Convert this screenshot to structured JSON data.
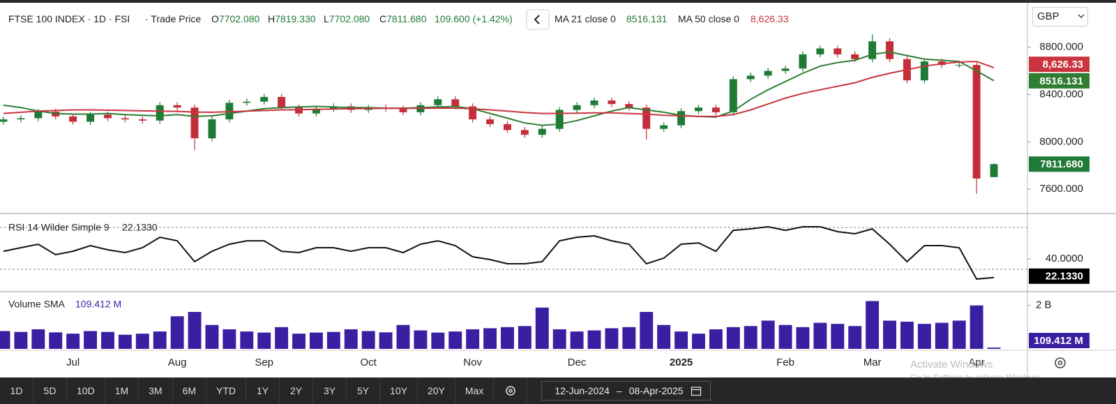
{
  "header": {
    "symbol": "FTSE 100 INDEX · 1D · FSI",
    "price_type": "· Trade Price",
    "ohlc_keys": [
      "O",
      "H",
      "L",
      "C"
    ],
    "change": "109.600 (+1.42%)"
  },
  "currency": "GBP",
  "chart_data": [
    {
      "type": "candlestick",
      "categories": [
        null,
        null,
        null,
        null,
        "Jul",
        null,
        null,
        null,
        null,
        null,
        "Aug",
        null,
        null,
        null,
        null,
        "Sep",
        null,
        null,
        null,
        null,
        null,
        "Oct",
        null,
        null,
        null,
        null,
        null,
        "Nov",
        null,
        null,
        null,
        null,
        null,
        "Dec",
        null,
        null,
        null,
        null,
        null,
        "2025",
        null,
        null,
        null,
        null,
        null,
        "Feb",
        null,
        null,
        null,
        null,
        "Mar",
        null,
        null,
        null,
        null,
        null,
        "Apr",
        null
      ],
      "ohlc": {
        "open": {
          "values": [
            8170,
            8190,
            8200,
            8255,
            8215,
            8170,
            8230,
            8200,
            8190,
            8180,
            8310,
            8290,
            8030,
            8190,
            8330,
            8340,
            8380,
            8290,
            8240,
            8280,
            8300,
            8270,
            8290,
            8280,
            8250,
            8310,
            8360,
            8300,
            8190,
            8150,
            8100,
            8060,
            8110,
            8270,
            8310,
            8350,
            8320,
            8290,
            8110,
            8140,
            8260,
            8290,
            8250,
            8530,
            8560,
            8600,
            8620,
            8740,
            8790,
            8740,
            8700,
            8850,
            8700,
            8520,
            8680,
            8650,
            8650,
            7702.08
          ],
          "value_labels": [
            null,
            null,
            null,
            null,
            null,
            null,
            null,
            null,
            null,
            null,
            null,
            null,
            null,
            null,
            null,
            null,
            null,
            null,
            null,
            null,
            null,
            null,
            null,
            null,
            null,
            null,
            null,
            null,
            null,
            null,
            null,
            null,
            null,
            null,
            null,
            null,
            null,
            null,
            null,
            null,
            null,
            null,
            null,
            null,
            null,
            null,
            null,
            null,
            null,
            null,
            null,
            null,
            null,
            null,
            null,
            null,
            null,
            "7702.080"
          ]
        },
        "high": {
          "values": [
            8215,
            8225,
            8280,
            8280,
            8240,
            8255,
            8255,
            8225,
            8215,
            8335,
            8335,
            8315,
            8215,
            8355,
            8365,
            8405,
            8405,
            8315,
            8305,
            8325,
            8325,
            8315,
            8315,
            8305,
            8335,
            8385,
            8385,
            8325,
            8215,
            8175,
            8125,
            8135,
            8295,
            8335,
            8375,
            8375,
            8345,
            8315,
            8165,
            8285,
            8315,
            8315,
            8555,
            8585,
            8625,
            8645,
            8765,
            8815,
            8815,
            8765,
            8910,
            8875,
            8725,
            8705,
            8705,
            8675,
            8670,
            7819.33
          ],
          "value_labels": [
            null,
            null,
            null,
            null,
            null,
            null,
            null,
            null,
            null,
            null,
            null,
            null,
            null,
            null,
            null,
            null,
            null,
            null,
            null,
            null,
            null,
            null,
            null,
            null,
            null,
            null,
            null,
            null,
            null,
            null,
            null,
            null,
            null,
            null,
            null,
            null,
            null,
            null,
            null,
            null,
            null,
            null,
            null,
            null,
            null,
            null,
            null,
            null,
            null,
            null,
            null,
            null,
            null,
            null,
            null,
            null,
            null,
            "7819.330"
          ]
        },
        "low": {
          "values": [
            8145,
            8165,
            8175,
            8190,
            8145,
            8145,
            8175,
            8165,
            8155,
            8155,
            8265,
            7930,
            8005,
            8165,
            8305,
            8315,
            8265,
            8215,
            8215,
            8255,
            8245,
            8245,
            8255,
            8225,
            8225,
            8285,
            8275,
            8165,
            8125,
            8075,
            8035,
            8035,
            8085,
            8245,
            8285,
            8295,
            8265,
            8020,
            8085,
            8115,
            8235,
            8225,
            8225,
            8505,
            8535,
            8575,
            8595,
            8715,
            8715,
            8675,
            8675,
            8675,
            8495,
            8495,
            8625,
            8625,
            7560,
            7702.08
          ],
          "value_labels": [
            null,
            null,
            null,
            null,
            null,
            null,
            null,
            null,
            null,
            null,
            null,
            null,
            null,
            null,
            null,
            null,
            null,
            null,
            null,
            null,
            null,
            null,
            null,
            null,
            null,
            null,
            null,
            null,
            null,
            null,
            null,
            null,
            null,
            null,
            null,
            null,
            null,
            null,
            null,
            null,
            null,
            null,
            null,
            null,
            null,
            null,
            null,
            null,
            null,
            null,
            null,
            null,
            null,
            null,
            null,
            null,
            null,
            "7702.080"
          ]
        },
        "close": {
          "values": [
            8190,
            8200,
            8255,
            8215,
            8170,
            8230,
            8200,
            8190,
            8180,
            8310,
            8290,
            8030,
            8190,
            8330,
            8340,
            8380,
            8290,
            8240,
            8280,
            8300,
            8270,
            8290,
            8280,
            8250,
            8310,
            8360,
            8300,
            8190,
            8150,
            8100,
            8060,
            8110,
            8270,
            8310,
            8350,
            8320,
            8290,
            8110,
            8140,
            8260,
            8290,
            8250,
            8530,
            8560,
            8600,
            8620,
            8740,
            8790,
            8740,
            8700,
            8850,
            8700,
            8520,
            8680,
            8650,
            8650,
            7690,
            7811.68
          ],
          "value_labels": [
            null,
            null,
            null,
            null,
            null,
            null,
            null,
            null,
            null,
            null,
            null,
            null,
            null,
            null,
            null,
            null,
            null,
            null,
            null,
            null,
            null,
            null,
            null,
            null,
            null,
            null,
            null,
            null,
            null,
            null,
            null,
            null,
            null,
            null,
            null,
            null,
            null,
            null,
            null,
            null,
            null,
            null,
            null,
            null,
            null,
            null,
            null,
            null,
            null,
            null,
            null,
            null,
            null,
            null,
            null,
            null,
            null,
            "7811.680"
          ]
        }
      },
      "up_color": "#1f7a35",
      "down_color": "#c42e3a",
      "lines": [
        {
          "name": "MA 21 close 0",
          "color": "#2e7d32",
          "values": [
            8310,
            8290,
            8260,
            8240,
            8235,
            8235,
            8240,
            8230,
            8225,
            8220,
            8230,
            8215,
            8220,
            8240,
            8260,
            8280,
            8290,
            8295,
            8300,
            8295,
            8290,
            8290,
            8285,
            8285,
            8290,
            8295,
            8300,
            8280,
            8240,
            8200,
            8160,
            8140,
            8150,
            8180,
            8220,
            8260,
            8290,
            8270,
            8250,
            8225,
            8215,
            8210,
            8260,
            8360,
            8440,
            8510,
            8580,
            8640,
            8670,
            8690,
            8740,
            8760,
            8730,
            8700,
            8690,
            8680,
            8600,
            8516.131
          ]
        },
        {
          "name": "MA 50 close 0",
          "color": "#c9343f",
          "values": [
            8240,
            8250,
            8260,
            8265,
            8270,
            8270,
            8268,
            8265,
            8262,
            8260,
            8258,
            8252,
            8250,
            8255,
            8260,
            8265,
            8270,
            8272,
            8275,
            8278,
            8280,
            8282,
            8283,
            8283,
            8283,
            8285,
            8285,
            8280,
            8270,
            8260,
            8248,
            8240,
            8240,
            8242,
            8245,
            8245,
            8240,
            8235,
            8225,
            8220,
            8215,
            8215,
            8230,
            8270,
            8320,
            8370,
            8410,
            8440,
            8470,
            8500,
            8545,
            8580,
            8610,
            8640,
            8660,
            8675,
            8680,
            8626.33
          ],
          "value_labels": [
            null,
            null,
            null,
            null,
            null,
            null,
            null,
            null,
            null,
            null,
            null,
            null,
            null,
            null,
            null,
            null,
            null,
            null,
            null,
            null,
            null,
            null,
            null,
            null,
            null,
            null,
            null,
            null,
            null,
            null,
            null,
            null,
            null,
            null,
            null,
            null,
            null,
            null,
            null,
            null,
            null,
            null,
            null,
            null,
            null,
            null,
            null,
            null,
            null,
            null,
            null,
            null,
            null,
            null,
            null,
            null,
            null,
            "8,626.33"
          ]
        }
      ],
      "ylim": [
        7400,
        9170
      ],
      "yticks": [
        {
          "value": 8800,
          "label": "8800.000"
        },
        {
          "value": 8400,
          "label": "8400.000"
        },
        {
          "value": 8000,
          "label": "8000.000"
        },
        {
          "value": 7600,
          "label": "7600.000"
        }
      ]
    },
    {
      "type": "line",
      "title": "RSI 14 Wilder Simple 9",
      "color": "#111111",
      "values": [
        47.3,
        50.7,
        54,
        44,
        47.3,
        52.7,
        48.7,
        46,
        50.7,
        60.7,
        57.3,
        37.3,
        47.3,
        54,
        57.3,
        57.3,
        47.3,
        46,
        50.7,
        50.7,
        47.3,
        50.7,
        50.7,
        46,
        54,
        57.3,
        52.7,
        42,
        39.3,
        35.3,
        35.3,
        37.3,
        57.3,
        60.7,
        62,
        57.3,
        54,
        35.3,
        40.7,
        54,
        55.3,
        47.3,
        67.3,
        68.7,
        70.7,
        67.3,
        70.7,
        70.7,
        66,
        64,
        68.7,
        54,
        37.3,
        52.7,
        52.7,
        50.7,
        20.7,
        22.133
      ],
      "value_labels": [
        null,
        null,
        null,
        null,
        null,
        null,
        null,
        null,
        null,
        null,
        null,
        null,
        null,
        null,
        null,
        null,
        null,
        null,
        null,
        null,
        null,
        null,
        null,
        null,
        null,
        null,
        null,
        null,
        null,
        null,
        null,
        null,
        null,
        null,
        null,
        null,
        null,
        null,
        null,
        null,
        null,
        null,
        null,
        null,
        null,
        null,
        null,
        null,
        null,
        null,
        null,
        null,
        null,
        null,
        null,
        null,
        null,
        "22.1330"
      ],
      "levels": [
        70,
        30
      ],
      "ylim": [
        9.3,
        82.7
      ],
      "yticks": [
        {
          "value": 40,
          "label": "40.0000"
        }
      ]
    },
    {
      "type": "bar",
      "title": "Volume SMA",
      "color": "#3b1fa3",
      "values": [
        820,
        780,
        900,
        760,
        700,
        820,
        780,
        650,
        700,
        800,
        1500,
        1700,
        1100,
        900,
        800,
        750,
        1000,
        700,
        750,
        780,
        900,
        820,
        760,
        1100,
        850,
        750,
        800,
        900,
        950,
        1000,
        1050,
        1900,
        900,
        800,
        850,
        950,
        1000,
        1700,
        1100,
        800,
        700,
        900,
        1000,
        1050,
        1300,
        1100,
        1000,
        1200,
        1150,
        1050,
        2200,
        1300,
        1250,
        1150,
        1200,
        1300,
        2000,
        60
      ],
      "sma": {
        "value": 109.412,
        "label": "109.412 M"
      },
      "ylim": [
        0,
        2600
      ],
      "yticks": [
        {
          "value": 2000,
          "label": "2 B"
        }
      ]
    }
  ],
  "range_buttons": [
    "1D",
    "5D",
    "10D",
    "1M",
    "3M",
    "6M",
    "YTD",
    "1Y",
    "2Y",
    "3Y",
    "5Y",
    "10Y",
    "20Y",
    "Max"
  ],
  "date_range": {
    "from": "12-Jun-2024",
    "separator": "–",
    "to": "08-Apr-2025"
  },
  "watermark": [
    "Activate Windows",
    "Go to Settings to activate Windows."
  ]
}
